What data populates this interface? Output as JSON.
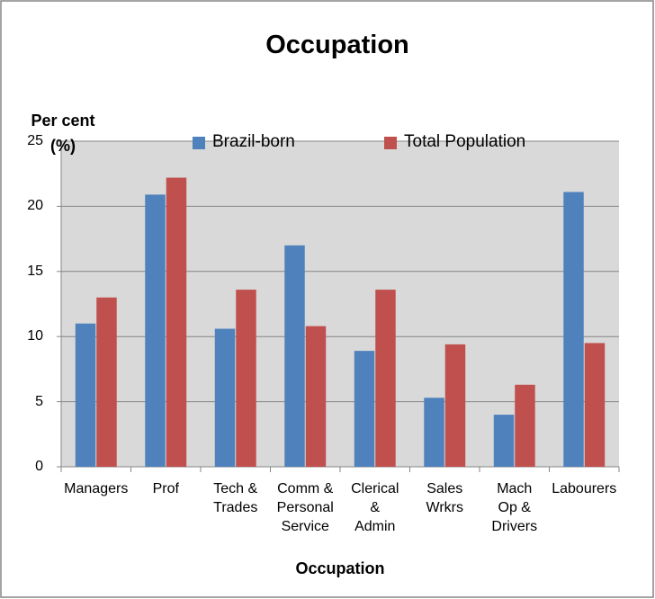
{
  "chart_data": {
    "type": "bar",
    "title": "Occupation",
    "x_label": "Occupation",
    "y_label": "Per cent\n(%)",
    "categories": [
      "Managers",
      "Prof",
      "Tech &\nTrades",
      "Comm &\nPersonal\nService",
      "Clerical\n&\nAdmin",
      "Sales\nWrkrs",
      "Mach\nOp &\nDrivers",
      "Labourers"
    ],
    "series": [
      {
        "name": "Brazil-born",
        "color": "#4f81bd",
        "values": [
          11.0,
          20.9,
          10.6,
          17.0,
          8.9,
          5.3,
          4.0,
          21.1
        ]
      },
      {
        "name": "Total Population",
        "color": "#c0504d",
        "values": [
          13.0,
          22.2,
          13.6,
          10.8,
          13.6,
          9.4,
          6.3,
          9.5
        ]
      }
    ],
    "ylim": [
      0,
      25
    ],
    "yticks": [
      0,
      5,
      10,
      15,
      20,
      25
    ],
    "grid": true,
    "legend": "top"
  }
}
